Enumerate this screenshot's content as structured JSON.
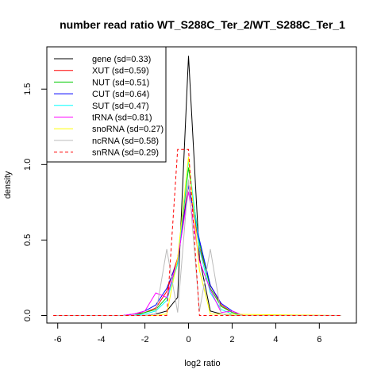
{
  "chart_data": {
    "type": "line",
    "title": "number read ratio WT_S288C_Ter_2/WT_S288C_Ter_1",
    "xlabel": "log2 ratio",
    "ylabel": "density",
    "xlim": [
      -6.5,
      7.7
    ],
    "ylim": [
      -0.05,
      1.78
    ],
    "xticks": [
      -6,
      -4,
      -2,
      0,
      2,
      4,
      6
    ],
    "yticks": [
      0.0,
      0.5,
      1.0,
      1.5
    ],
    "xtick_labels": [
      "-6",
      "-4",
      "-2",
      "0",
      "2",
      "4",
      "6"
    ],
    "ytick_labels": [
      "0.0",
      "0.5",
      "1.0",
      "1.5"
    ],
    "grid": false,
    "legend_position": "top-left",
    "series": [
      {
        "name": "gene (sd=0.33)",
        "color": "#000000",
        "dash": false,
        "x": [
          -6.2,
          -3.0,
          -2.0,
          -1.5,
          -1.0,
          -0.5,
          0.0,
          0.5,
          1.0,
          1.5,
          2.0,
          2.5,
          7.0
        ],
        "y": [
          0.0,
          0.0,
          0.0,
          0.01,
          0.03,
          0.12,
          1.72,
          0.38,
          0.03,
          0.01,
          0.0,
          0.0,
          0.0
        ]
      },
      {
        "name": "XUT (sd=0.59)",
        "color": "#ff0000",
        "dash": false,
        "x": [
          -6.2,
          -3.0,
          -2.5,
          -2.0,
          -1.5,
          -1.0,
          -0.5,
          0.0,
          0.5,
          1.0,
          1.5,
          2.0,
          2.5,
          7.0
        ],
        "y": [
          0.0,
          0.0,
          0.01,
          0.02,
          0.05,
          0.16,
          0.38,
          0.88,
          0.45,
          0.2,
          0.07,
          0.02,
          0.0,
          0.0
        ]
      },
      {
        "name": "NUT (sd=0.51)",
        "color": "#00cc00",
        "dash": false,
        "x": [
          -6.2,
          -3.0,
          -2.5,
          -2.0,
          -1.5,
          -1.0,
          -0.5,
          0.0,
          0.5,
          1.0,
          1.5,
          2.0,
          2.5,
          7.0
        ],
        "y": [
          0.0,
          0.0,
          0.0,
          0.02,
          0.04,
          0.12,
          0.36,
          0.98,
          0.48,
          0.18,
          0.06,
          0.02,
          0.0,
          0.0
        ]
      },
      {
        "name": "CUT (sd=0.64)",
        "color": "#0000ff",
        "dash": false,
        "x": [
          -6.2,
          -3.0,
          -2.5,
          -2.0,
          -1.5,
          -1.0,
          -0.5,
          0.0,
          0.5,
          1.0,
          1.5,
          2.0,
          2.5,
          7.0
        ],
        "y": [
          0.0,
          0.0,
          0.01,
          0.03,
          0.07,
          0.18,
          0.36,
          0.86,
          0.5,
          0.2,
          0.08,
          0.03,
          0.0,
          0.0
        ]
      },
      {
        "name": "SUT (sd=0.47)",
        "color": "#00ffff",
        "dash": false,
        "x": [
          -6.2,
          -3.0,
          -2.5,
          -2.0,
          -1.5,
          -1.0,
          -0.5,
          0.0,
          0.5,
          1.0,
          1.5,
          2.0,
          2.5,
          7.0
        ],
        "y": [
          0.0,
          0.0,
          0.0,
          0.01,
          0.03,
          0.1,
          0.34,
          1.03,
          0.44,
          0.15,
          0.04,
          0.01,
          0.0,
          0.0
        ]
      },
      {
        "name": "tRNA (sd=0.81)",
        "color": "#ff00ff",
        "dash": false,
        "x": [
          -6.2,
          -3.0,
          -2.5,
          -2.0,
          -1.5,
          -1.0,
          -0.5,
          0.0,
          0.5,
          1.0,
          1.5,
          2.0,
          2.5,
          7.0
        ],
        "y": [
          0.0,
          0.0,
          0.01,
          0.03,
          0.15,
          0.12,
          0.37,
          0.82,
          0.36,
          0.17,
          0.02,
          0.03,
          0.0,
          0.0
        ]
      },
      {
        "name": "snoRNA (sd=0.27)",
        "color": "#ffff00",
        "dash": false,
        "x": [
          -6.2,
          -1.5,
          -1.0,
          -0.5,
          0.0,
          0.5,
          1.0,
          7.0
        ],
        "y": [
          0.0,
          0.0,
          0.01,
          0.38,
          1.05,
          0.3,
          0.01,
          0.0
        ]
      },
      {
        "name": "ncRNA (sd=0.58)",
        "color": "#bbbbbb",
        "dash": false,
        "x": [
          -6.2,
          -2.0,
          -1.5,
          -1.0,
          -0.5,
          0.0,
          0.5,
          1.0,
          1.5,
          2.0,
          7.0
        ],
        "y": [
          0.0,
          0.0,
          0.01,
          0.44,
          0.02,
          0.9,
          0.03,
          0.44,
          0.01,
          0.0,
          0.0
        ]
      },
      {
        "name": "snRNA (sd=0.29)",
        "color": "#ff0000",
        "dash": true,
        "x": [
          -6.2,
          -1.0,
          -0.5,
          0.0,
          0.5,
          1.0,
          7.0
        ],
        "y": [
          0.0,
          0.0,
          1.1,
          1.1,
          0.0,
          0.0,
          0.0
        ]
      }
    ]
  }
}
